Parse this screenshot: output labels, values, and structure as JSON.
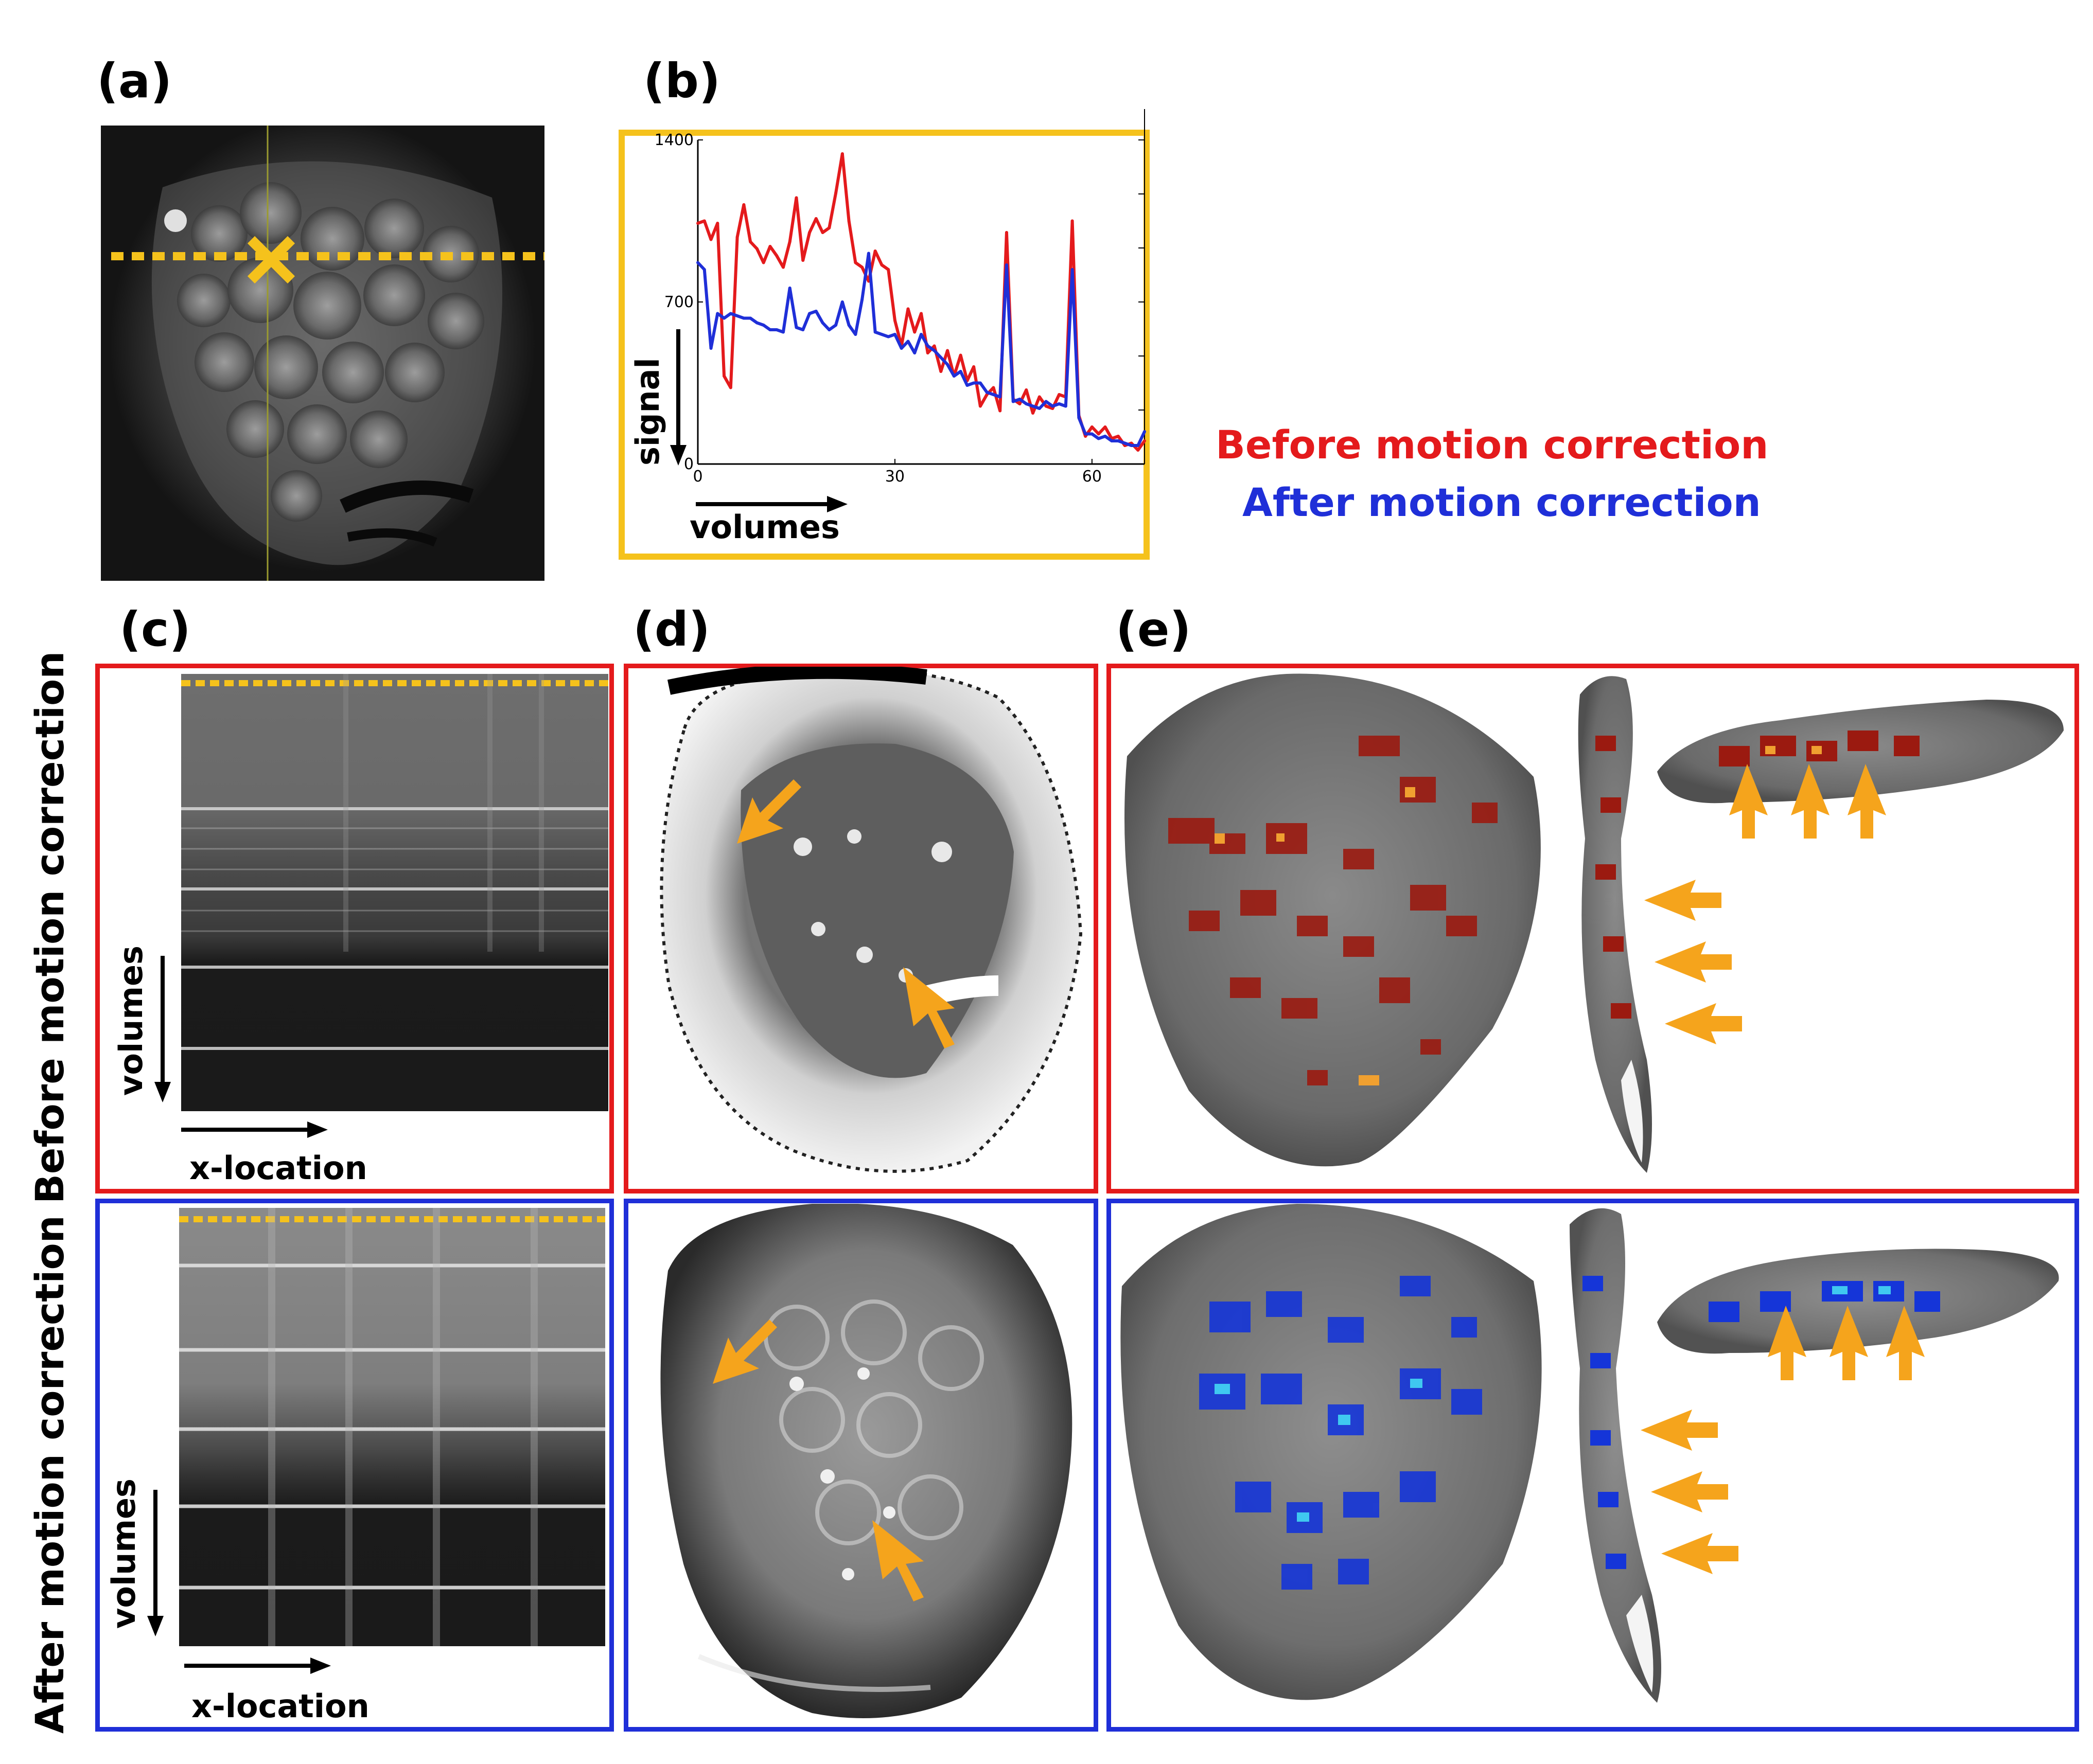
{
  "panels": {
    "a": "(a)",
    "b": "(b)",
    "c": "(c)",
    "d": "(d)",
    "e": "(e)"
  },
  "row_titles": {
    "before": "Before motion correction",
    "after": "After motion correction"
  },
  "legend": {
    "before": "Before motion correction",
    "after": "After motion correction",
    "before_color": "#e41a1c",
    "after_color": "#1f2fd8"
  },
  "axes": {
    "volumes": "volumes",
    "x_location": "x-location",
    "signal": "signal"
  },
  "chart_data": {
    "type": "line",
    "title": "",
    "xlabel": "volumes",
    "ylabel": "signal",
    "xlim": [
      0,
      68
    ],
    "ylim": [
      0,
      1400
    ],
    "xticks": [
      0,
      30,
      60
    ],
    "yticks": [
      0,
      700,
      1400
    ],
    "series": [
      {
        "name": "Before motion correction",
        "color": "#e41a1c",
        "values": [
          1040,
          1050,
          970,
          1040,
          380,
          330,
          980,
          1120,
          960,
          930,
          870,
          940,
          900,
          850,
          960,
          1150,
          880,
          1000,
          1060,
          1000,
          1020,
          1170,
          1340,
          1050,
          870,
          850,
          790,
          920,
          860,
          840,
          620,
          510,
          670,
          570,
          650,
          480,
          510,
          400,
          490,
          380,
          470,
          360,
          420,
          250,
          300,
          330,
          230,
          1000,
          280,
          260,
          320,
          220,
          290,
          250,
          240,
          300,
          290,
          1050,
          210,
          120,
          160,
          130,
          160,
          110,
          120,
          80,
          90,
          60,
          100
        ]
      },
      {
        "name": "After motion correction",
        "color": "#1f2fd8",
        "values": [
          870,
          840,
          500,
          650,
          630,
          650,
          640,
          630,
          630,
          610,
          600,
          580,
          580,
          570,
          760,
          590,
          580,
          650,
          660,
          610,
          580,
          600,
          700,
          600,
          560,
          710,
          910,
          570,
          560,
          550,
          560,
          500,
          530,
          480,
          560,
          510,
          490,
          460,
          430,
          380,
          400,
          340,
          350,
          350,
          310,
          300,
          290,
          860,
          270,
          280,
          260,
          250,
          240,
          270,
          250,
          260,
          250,
          840,
          200,
          130,
          130,
          110,
          120,
          100,
          100,
          90,
          80,
          80,
          140
        ]
      }
    ]
  }
}
